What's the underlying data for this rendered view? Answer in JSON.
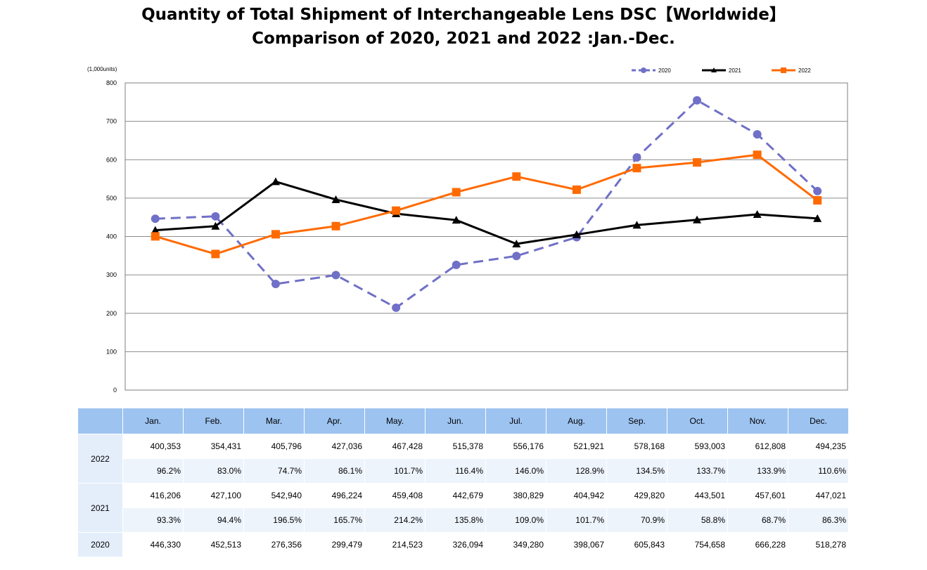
{
  "title_line1": "Quantity of Total Shipment of Interchangeable Lens DSC【Worldwide】",
  "title_line2": "Comparison of 2020, 2021 and 2022 :Jan.-Dec.",
  "chart_data": {
    "type": "line",
    "ylabel": "(1,000units)",
    "ylim": [
      0,
      800
    ],
    "yticks": [
      0,
      100,
      200,
      300,
      400,
      500,
      600,
      700,
      800
    ],
    "grid": true,
    "legend_position": "top-right",
    "categories": [
      "Jan.",
      "Feb.",
      "Mar.",
      "Apr.",
      "May.",
      "Jun.",
      "Jul.",
      "Aug.",
      "Sep.",
      "Oct.",
      "Nov.",
      "Dec."
    ],
    "series": [
      {
        "name": "2020",
        "color": "#7070c8",
        "marker": "circle",
        "dash": true,
        "values": [
          446.33,
          452.513,
          276.356,
          299.479,
          214.523,
          326.094,
          349.28,
          398.067,
          605.843,
          754.658,
          666.228,
          518.278
        ]
      },
      {
        "name": "2021",
        "color": "#000000",
        "marker": "triangle",
        "dash": false,
        "values": [
          416.206,
          427.1,
          542.94,
          496.224,
          459.408,
          442.679,
          380.829,
          404.942,
          429.82,
          443.501,
          457.601,
          447.021
        ]
      },
      {
        "name": "2022",
        "color": "#ff6a00",
        "marker": "square",
        "dash": false,
        "values": [
          400.353,
          354.431,
          405.796,
          427.036,
          467.428,
          515.378,
          556.176,
          521.921,
          578.168,
          593.003,
          612.808,
          494.235
        ]
      }
    ]
  },
  "table": {
    "months": [
      "Jan.",
      "Feb.",
      "Mar.",
      "Apr.",
      "May.",
      "Jun.",
      "Jul.",
      "Aug.",
      "Sep.",
      "Oct.",
      "Nov.",
      "Dec."
    ],
    "rows": [
      {
        "year": "2022",
        "units": [
          "400,353",
          "354,431",
          "405,796",
          "427,036",
          "467,428",
          "515,378",
          "556,176",
          "521,921",
          "578,168",
          "593,003",
          "612,808",
          "494,235"
        ],
        "ratio": [
          "96.2%",
          "83.0%",
          "74.7%",
          "86.1%",
          "101.7%",
          "116.4%",
          "146.0%",
          "128.9%",
          "134.5%",
          "133.7%",
          "133.9%",
          "110.6%"
        ]
      },
      {
        "year": "2021",
        "units": [
          "416,206",
          "427,100",
          "542,940",
          "496,224",
          "459,408",
          "442,679",
          "380,829",
          "404,942",
          "429,820",
          "443,501",
          "457,601",
          "447,021"
        ],
        "ratio": [
          "93.3%",
          "94.4%",
          "196.5%",
          "165.7%",
          "214.2%",
          "135.8%",
          "109.0%",
          "101.7%",
          "70.9%",
          "58.8%",
          "68.7%",
          "86.3%"
        ]
      },
      {
        "year": "2020",
        "units": [
          "446,330",
          "452,513",
          "276,356",
          "299,479",
          "214,523",
          "326,094",
          "349,280",
          "398,067",
          "605,843",
          "754,658",
          "666,228",
          "518,278"
        ]
      }
    ]
  }
}
